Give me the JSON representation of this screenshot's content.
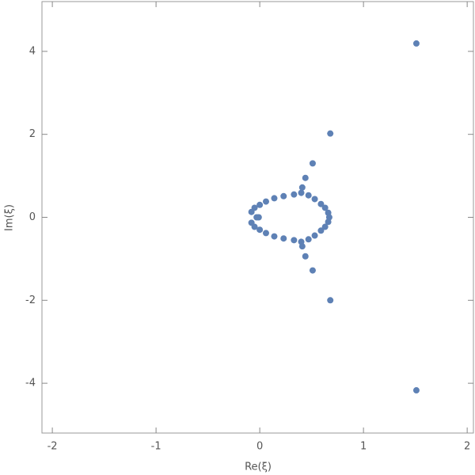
{
  "chart_data": {
    "type": "scatter",
    "x_label": "Re(ξ)",
    "y_label": "Im(ξ)",
    "x": [
      1.51,
      1.51,
      0.68,
      0.68,
      0.51,
      0.51,
      0.44,
      0.44,
      0.41,
      0.41,
      -0.08,
      -0.05,
      0.0,
      0.06,
      0.14,
      0.23,
      0.33,
      0.4,
      0.47,
      0.53,
      0.59,
      0.63,
      0.66,
      -0.08,
      -0.05,
      0.0,
      0.06,
      0.14,
      0.23,
      0.33,
      0.4,
      0.47,
      0.53,
      0.59,
      0.63,
      0.66,
      -0.03,
      -0.01,
      0.67
    ],
    "series": [
      {
        "color": "#5e81b5",
        "values": [
          4.19,
          -4.17,
          2.02,
          -2.0,
          1.3,
          -1.28,
          0.95,
          -0.94,
          0.72,
          -0.7,
          0.13,
          0.23,
          0.3,
          0.38,
          0.46,
          0.51,
          0.55,
          0.59,
          0.53,
          0.44,
          0.32,
          0.23,
          0.11,
          -0.13,
          -0.23,
          -0.3,
          -0.38,
          -0.46,
          -0.51,
          -0.55,
          -0.59,
          -0.53,
          -0.44,
          -0.32,
          -0.23,
          -0.11,
          0.0,
          0.0,
          0.0
        ]
      }
    ],
    "xlim": [
      -2.1,
      2.06
    ],
    "ylim": [
      -5.2,
      5.2
    ],
    "xticks": [
      -2,
      -1,
      0,
      1,
      2
    ],
    "yticks": [
      -4,
      -2,
      0,
      2,
      4
    ]
  }
}
